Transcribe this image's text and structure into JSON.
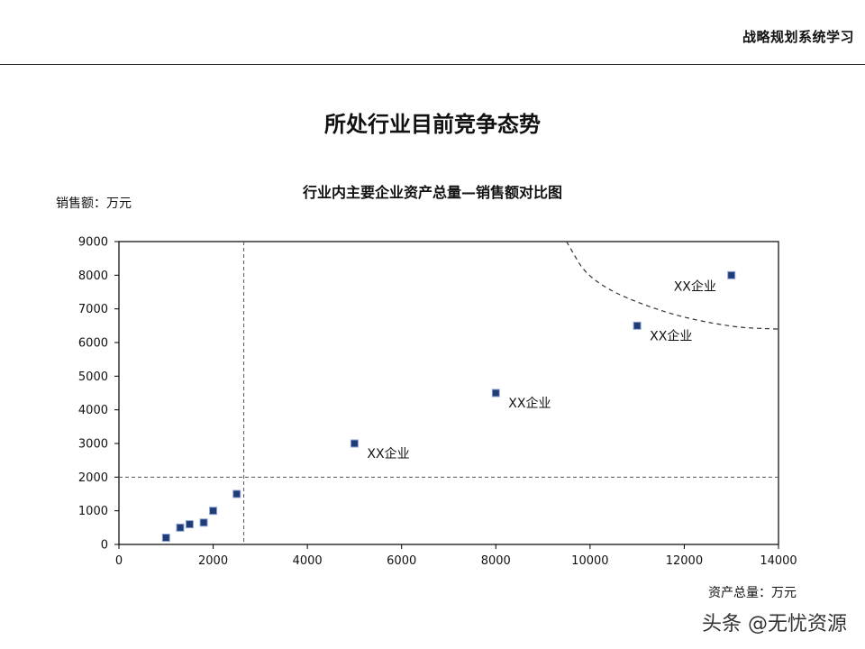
{
  "header": {
    "title": "战略规划系统学习"
  },
  "page": {
    "title": "所处行业目前竞争态势"
  },
  "watermark": "头条 @无忧资源",
  "chart_data": {
    "type": "scatter",
    "title": "行业内主要企业资产总量—销售额对比图",
    "xlabel": "资产总量：万元",
    "ylabel": "销售额：万元",
    "xlim": [
      0,
      14000
    ],
    "ylim": [
      0,
      9000
    ],
    "xticks": [
      0,
      2000,
      4000,
      6000,
      8000,
      10000,
      12000,
      14000
    ],
    "yticks": [
      0,
      1000,
      2000,
      3000,
      4000,
      5000,
      6000,
      7000,
      8000,
      9000
    ],
    "grid": false,
    "series": [
      {
        "points": [
          {
            "x": 1000,
            "y": 200,
            "label": ""
          },
          {
            "x": 1300,
            "y": 500,
            "label": ""
          },
          {
            "x": 1500,
            "y": 600,
            "label": ""
          },
          {
            "x": 1800,
            "y": 650,
            "label": ""
          },
          {
            "x": 2000,
            "y": 1000,
            "label": ""
          },
          {
            "x": 2500,
            "y": 1500,
            "label": ""
          },
          {
            "x": 5000,
            "y": 3000,
            "label": "XX企业"
          },
          {
            "x": 8000,
            "y": 4500,
            "label": "XX企业"
          },
          {
            "x": 11000,
            "y": 6500,
            "label": "XX企业"
          },
          {
            "x": 13000,
            "y": 8000,
            "label": "XX企业"
          }
        ]
      }
    ],
    "reference_lines": {
      "vertical_x": 2650,
      "horizontal_y": 2000,
      "curve": [
        [
          9500,
          9000
        ],
        [
          10000,
          7800
        ],
        [
          11500,
          6900
        ],
        [
          13000,
          6450
        ],
        [
          14000,
          6400
        ]
      ]
    },
    "marker_color": "#1f3c78"
  }
}
